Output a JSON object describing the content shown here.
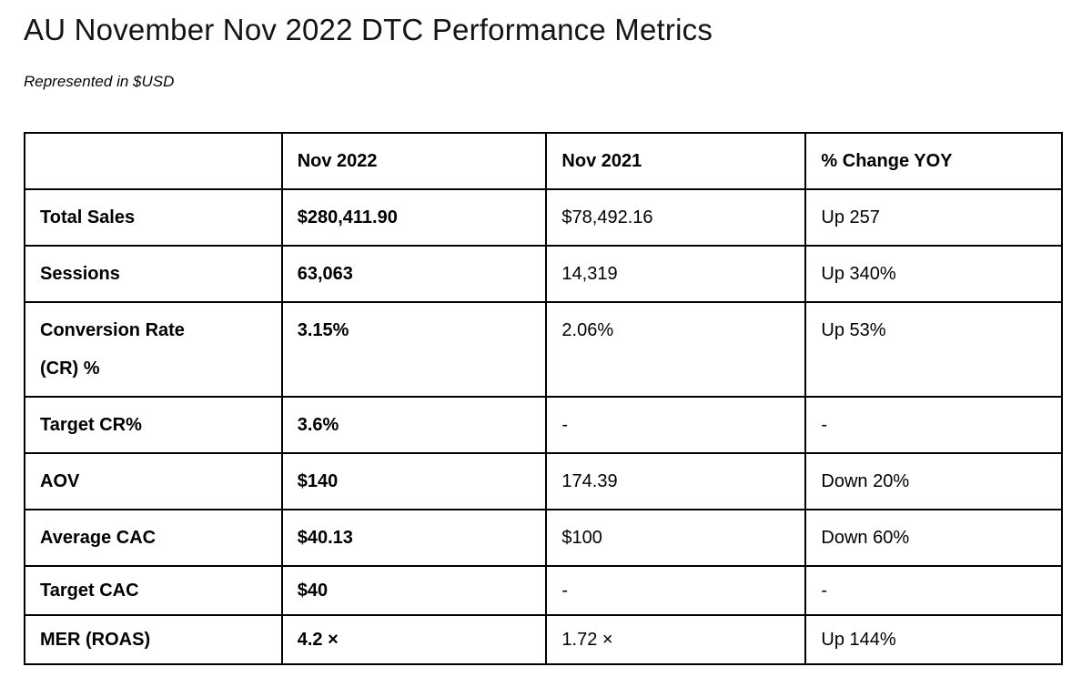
{
  "title": "AU November Nov 2022 DTC Performance Metrics",
  "subtitle": "Represented in $USD",
  "table": {
    "header": [
      "",
      "Nov 2022",
      "Nov 2021",
      "% Change YOY"
    ],
    "rows": [
      {
        "label": "Total Sales",
        "nov_2022": "$280,411.90",
        "nov_2021": "$78,492.16",
        "change_yoy": "Up 257"
      },
      {
        "label": "Sessions",
        "nov_2022": "63,063",
        "nov_2021": "14,319",
        "change_yoy": "Up 340%"
      },
      {
        "label": "Conversion Rate\n(CR) %",
        "nov_2022": "3.15%",
        "nov_2021": "2.06%",
        "change_yoy": "Up 53%"
      },
      {
        "label": "Target CR%",
        "nov_2022": "3.6%",
        "nov_2021": "-",
        "change_yoy": "-"
      },
      {
        "label": "AOV",
        "nov_2022": "$140",
        "nov_2021": "174.39",
        "change_yoy": "Down 20%"
      },
      {
        "label": "Average CAC",
        "nov_2022": "$40.13",
        "nov_2021": "$100",
        "change_yoy": "Down 60%"
      },
      {
        "label": "Target CAC",
        "nov_2022": "$40",
        "nov_2021": "-",
        "change_yoy": "-"
      },
      {
        "label": "MER (ROAS)",
        "nov_2022": "4.2 ×",
        "nov_2021": "1.72 ×",
        "change_yoy": "Up 144%"
      }
    ]
  }
}
